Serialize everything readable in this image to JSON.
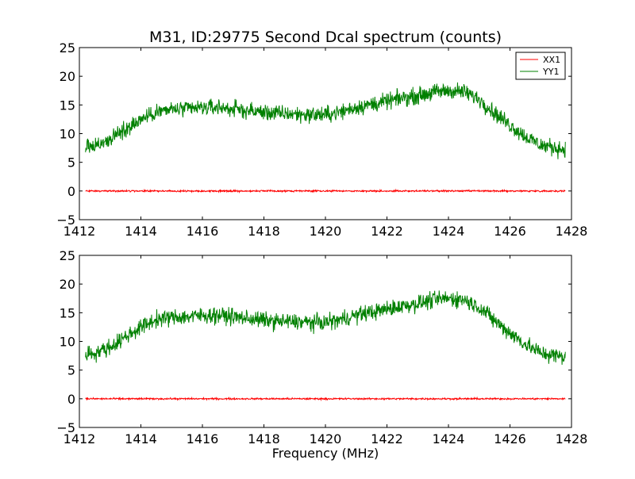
{
  "chart_data": [
    {
      "type": "line",
      "title": "M31, ID:29775 Second Dcal spectrum (counts)",
      "xlabel": "",
      "ylabel": "",
      "xlim": [
        1412,
        1428
      ],
      "ylim": [
        -5,
        25
      ],
      "xticks": [
        "1412",
        "1414",
        "1416",
        "1418",
        "1420",
        "1422",
        "1424",
        "1426",
        "1428"
      ],
      "yticks": [
        "−5",
        "0",
        "5",
        "10",
        "15",
        "20",
        "25"
      ],
      "legend": {
        "placement": "top-right",
        "entries": [
          "XX1",
          "YY1"
        ]
      },
      "grid": false,
      "series": [
        {
          "name": "XX1",
          "color": "#ff0000",
          "noise": 0.1,
          "x": [
            1412.2,
            1427.8
          ],
          "y": [
            0,
            0
          ]
        },
        {
          "name": "YY1",
          "color": "#008000",
          "noise": 1.0,
          "x": [
            1412.2,
            1412.5,
            1413.0,
            1413.5,
            1414.0,
            1414.5,
            1415.0,
            1415.5,
            1416.0,
            1416.5,
            1417.0,
            1417.5,
            1418.0,
            1418.5,
            1419.0,
            1419.5,
            1420.0,
            1420.5,
            1421.0,
            1421.5,
            1422.0,
            1422.5,
            1423.0,
            1423.5,
            1424.0,
            1424.5,
            1425.0,
            1425.5,
            1426.0,
            1426.5,
            1427.0,
            1427.5,
            1427.8
          ],
          "y": [
            7.8,
            8.0,
            9.0,
            10.8,
            12.5,
            13.8,
            14.2,
            14.3,
            14.5,
            14.6,
            14.3,
            14.0,
            13.7,
            13.5,
            13.4,
            13.3,
            13.3,
            13.8,
            14.6,
            15.1,
            15.6,
            16.2,
            16.6,
            17.2,
            17.5,
            17.3,
            16.0,
            13.6,
            11.5,
            9.5,
            8.0,
            7.5,
            7.3
          ]
        }
      ]
    },
    {
      "type": "line",
      "title": "",
      "xlabel": "Frequency (MHz)",
      "ylabel": "",
      "xlim": [
        1412,
        1428
      ],
      "ylim": [
        -5,
        25
      ],
      "xticks": [
        "1412",
        "1414",
        "1416",
        "1418",
        "1420",
        "1422",
        "1424",
        "1426",
        "1428"
      ],
      "yticks": [
        "−5",
        "0",
        "5",
        "10",
        "15",
        "20",
        "25"
      ],
      "grid": false,
      "series": [
        {
          "color": "#ff0000",
          "noise": 0.1,
          "x": [
            1412.2,
            1427.8
          ],
          "y": [
            0,
            0
          ]
        },
        {
          "color": "#008000",
          "noise": 1.0,
          "x": [
            1412.2,
            1412.5,
            1413.0,
            1413.5,
            1414.0,
            1414.5,
            1415.0,
            1415.5,
            1416.0,
            1416.5,
            1417.0,
            1417.5,
            1418.0,
            1418.5,
            1419.0,
            1419.5,
            1420.0,
            1420.5,
            1421.0,
            1421.5,
            1422.0,
            1422.5,
            1423.0,
            1423.5,
            1424.0,
            1424.5,
            1425.0,
            1425.5,
            1426.0,
            1426.5,
            1427.0,
            1427.5,
            1427.8
          ],
          "y": [
            7.8,
            8.0,
            9.0,
            10.8,
            12.5,
            13.8,
            14.2,
            14.3,
            14.5,
            14.6,
            14.3,
            14.0,
            13.7,
            13.5,
            13.4,
            13.3,
            13.3,
            13.8,
            14.6,
            15.1,
            15.6,
            16.2,
            16.6,
            17.2,
            17.5,
            17.3,
            16.0,
            13.6,
            11.5,
            9.5,
            8.0,
            7.5,
            7.3
          ]
        }
      ]
    }
  ]
}
